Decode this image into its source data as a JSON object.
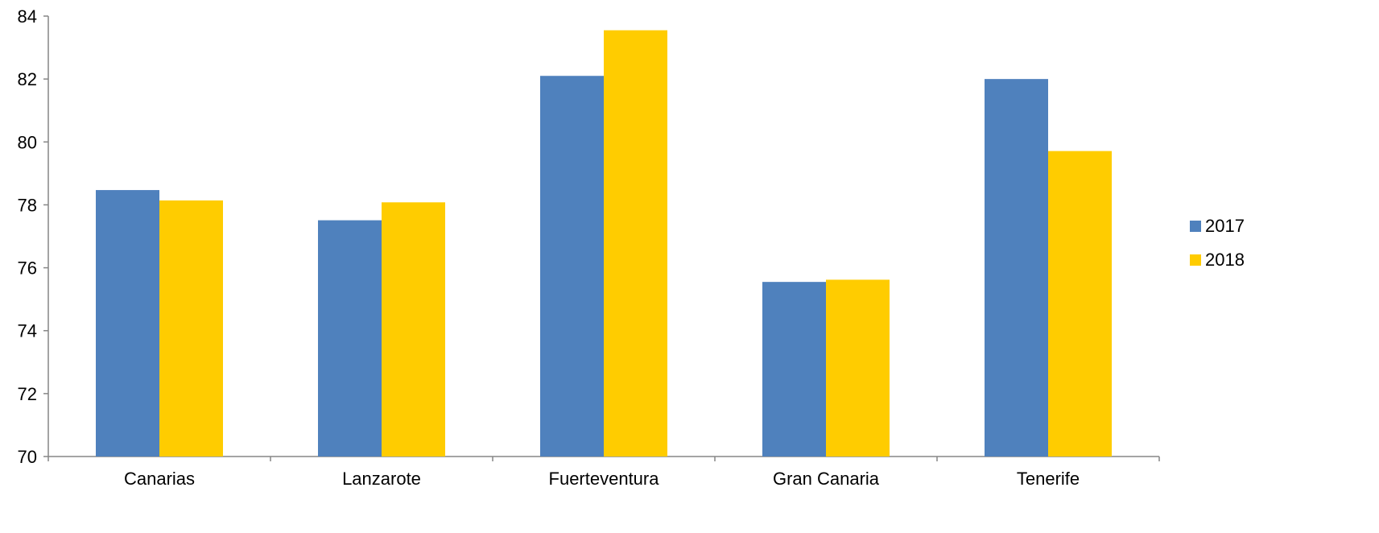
{
  "chart_data": {
    "type": "bar",
    "categories": [
      "Canarias",
      "Lanzarote",
      "Fuerteventura",
      "Gran Canaria",
      "Tenerife"
    ],
    "series": [
      {
        "name": "2017",
        "color": "#4F81BD",
        "values": [
          78.47,
          77.51,
          82.1,
          75.55,
          82.0
        ]
      },
      {
        "name": "2018",
        "color": "#FFCC00",
        "values": [
          78.14,
          78.08,
          83.55,
          75.62,
          79.71
        ]
      }
    ],
    "ylim": [
      70,
      84
    ],
    "yticks": [
      "70",
      "72",
      "74",
      "76",
      "78",
      "80",
      "82",
      "84"
    ],
    "title": "",
    "xlabel": "",
    "ylabel": "",
    "grid": false,
    "legend_position": "right"
  }
}
